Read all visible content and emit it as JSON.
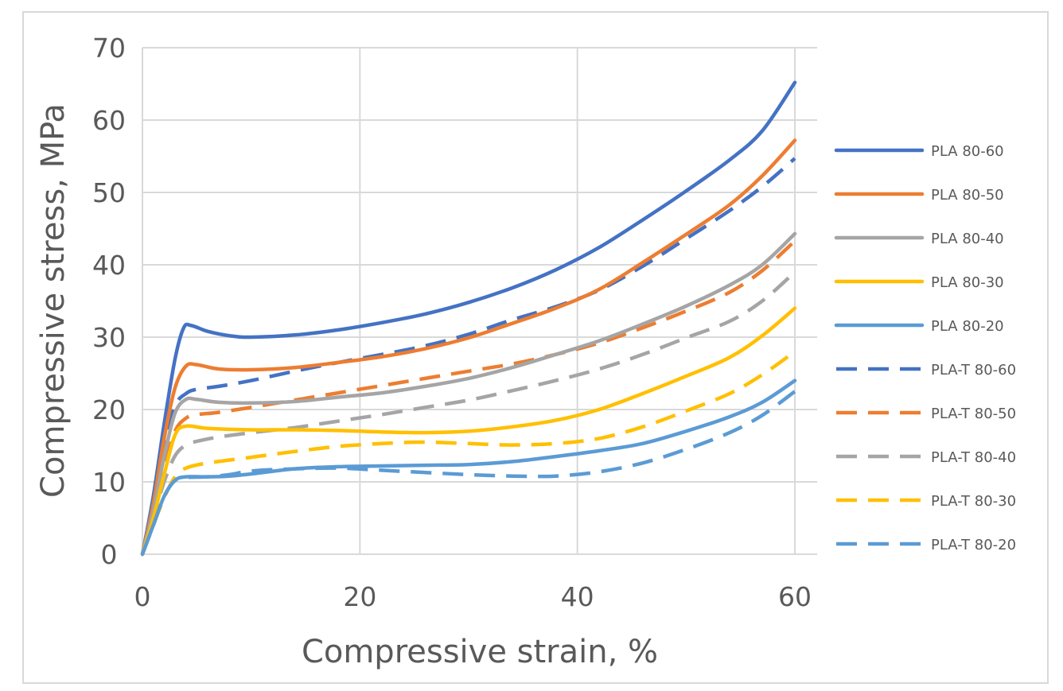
{
  "chart_data": {
    "type": "line",
    "title": "",
    "xlabel": "Compressive strain, %",
    "ylabel": "Compressive stress, MPa",
    "xlim": [
      0,
      60
    ],
    "ylim": [
      0,
      70
    ],
    "x_ticks": [
      0,
      20,
      40,
      60
    ],
    "y_ticks": [
      0,
      10,
      20,
      30,
      40,
      50,
      60,
      70
    ],
    "grid": true,
    "legend_position": "right",
    "series": [
      {
        "name": "PLA 80-60",
        "color": "#4472c4",
        "dash": "solid",
        "points": [
          [
            0,
            0
          ],
          [
            1,
            8
          ],
          [
            2,
            18
          ],
          [
            3,
            27
          ],
          [
            3.8,
            31.3
          ],
          [
            4.5,
            31.6
          ],
          [
            6,
            30.8
          ],
          [
            8,
            30.2
          ],
          [
            10,
            30
          ],
          [
            14,
            30.3
          ],
          [
            18,
            31
          ],
          [
            22,
            32
          ],
          [
            26,
            33.2
          ],
          [
            30,
            34.8
          ],
          [
            34,
            36.8
          ],
          [
            38,
            39.3
          ],
          [
            42,
            42.4
          ],
          [
            46,
            46.2
          ],
          [
            50,
            50.2
          ],
          [
            54,
            54.5
          ],
          [
            57,
            58.5
          ],
          [
            60,
            65.2
          ]
        ]
      },
      {
        "name": "PLA 80-50",
        "color": "#ed7d31",
        "dash": "solid",
        "points": [
          [
            0,
            0
          ],
          [
            1,
            7
          ],
          [
            2,
            16
          ],
          [
            3,
            23
          ],
          [
            4,
            26
          ],
          [
            5,
            26.2
          ],
          [
            7,
            25.6
          ],
          [
            10,
            25.5
          ],
          [
            14,
            25.8
          ],
          [
            18,
            26.5
          ],
          [
            22,
            27.3
          ],
          [
            26,
            28.4
          ],
          [
            30,
            29.9
          ],
          [
            34,
            31.9
          ],
          [
            38,
            34
          ],
          [
            42,
            36.6
          ],
          [
            46,
            40.3
          ],
          [
            50,
            44.2
          ],
          [
            54,
            48.3
          ],
          [
            57,
            52.3
          ],
          [
            60,
            57.2
          ]
        ]
      },
      {
        "name": "PLA 80-40",
        "color": "#a5a5a5",
        "dash": "solid",
        "points": [
          [
            0,
            0
          ],
          [
            1,
            6
          ],
          [
            2,
            13.5
          ],
          [
            3,
            19.5
          ],
          [
            4,
            21.4
          ],
          [
            5,
            21.4
          ],
          [
            7,
            21
          ],
          [
            10,
            20.9
          ],
          [
            14,
            21.1
          ],
          [
            18,
            21.7
          ],
          [
            22,
            22.3
          ],
          [
            26,
            23.2
          ],
          [
            30,
            24.3
          ],
          [
            34,
            25.8
          ],
          [
            38,
            27.6
          ],
          [
            42,
            29.5
          ],
          [
            46,
            31.8
          ],
          [
            50,
            34.3
          ],
          [
            54,
            37.2
          ],
          [
            57,
            40
          ],
          [
            60,
            44.3
          ]
        ]
      },
      {
        "name": "PLA 80-30",
        "color": "#ffc000",
        "dash": "solid",
        "points": [
          [
            0,
            0
          ],
          [
            1,
            5
          ],
          [
            2,
            11
          ],
          [
            3,
            16.5
          ],
          [
            4,
            17.7
          ],
          [
            6,
            17.4
          ],
          [
            10,
            17.2
          ],
          [
            14,
            17.2
          ],
          [
            18,
            17.1
          ],
          [
            22,
            16.9
          ],
          [
            26,
            16.8
          ],
          [
            30,
            17
          ],
          [
            34,
            17.6
          ],
          [
            38,
            18.5
          ],
          [
            42,
            20
          ],
          [
            46,
            22.2
          ],
          [
            50,
            24.6
          ],
          [
            54,
            27.2
          ],
          [
            57,
            30.2
          ],
          [
            60,
            34
          ]
        ]
      },
      {
        "name": "PLA 80-20",
        "color": "#5b9bd5",
        "dash": "solid",
        "points": [
          [
            0,
            0
          ],
          [
            1,
            4
          ],
          [
            2,
            8
          ],
          [
            3,
            10.2
          ],
          [
            4,
            10.7
          ],
          [
            6,
            10.7
          ],
          [
            8,
            10.8
          ],
          [
            10,
            11.1
          ],
          [
            14,
            11.8
          ],
          [
            18,
            12.1
          ],
          [
            22,
            12.2
          ],
          [
            26,
            12.3
          ],
          [
            30,
            12.4
          ],
          [
            34,
            12.8
          ],
          [
            38,
            13.5
          ],
          [
            42,
            14.3
          ],
          [
            46,
            15.3
          ],
          [
            50,
            17
          ],
          [
            54,
            19
          ],
          [
            57,
            21
          ],
          [
            60,
            24
          ]
        ]
      },
      {
        "name": "PLA-T 80-60",
        "color": "#4472c4",
        "dash": "dashed",
        "points": [
          [
            0,
            0
          ],
          [
            1,
            7
          ],
          [
            2,
            15
          ],
          [
            3,
            20.5
          ],
          [
            4,
            22.2
          ],
          [
            5,
            22.8
          ],
          [
            7,
            23.2
          ],
          [
            10,
            24
          ],
          [
            14,
            25.3
          ],
          [
            18,
            26.5
          ],
          [
            22,
            27.6
          ],
          [
            26,
            28.8
          ],
          [
            30,
            30.4
          ],
          [
            34,
            32.4
          ],
          [
            38,
            34.2
          ],
          [
            42,
            36.5
          ],
          [
            46,
            39.8
          ],
          [
            50,
            43.6
          ],
          [
            54,
            47.5
          ],
          [
            57,
            50.8
          ],
          [
            60,
            54.7
          ]
        ]
      },
      {
        "name": "PLA-T 80-50",
        "color": "#ed7d31",
        "dash": "dashed",
        "points": [
          [
            0,
            0
          ],
          [
            1,
            6
          ],
          [
            2,
            12
          ],
          [
            3,
            17
          ],
          [
            4,
            18.8
          ],
          [
            5,
            19.3
          ],
          [
            7,
            19.6
          ],
          [
            10,
            20.3
          ],
          [
            14,
            21.3
          ],
          [
            18,
            22.3
          ],
          [
            22,
            23.3
          ],
          [
            26,
            24.3
          ],
          [
            30,
            25.3
          ],
          [
            34,
            26.3
          ],
          [
            38,
            27.6
          ],
          [
            42,
            29.2
          ],
          [
            46,
            31.3
          ],
          [
            50,
            33.6
          ],
          [
            54,
            36.2
          ],
          [
            57,
            39.2
          ],
          [
            60,
            43.3
          ]
        ]
      },
      {
        "name": "PLA-T 80-40",
        "color": "#a5a5a5",
        "dash": "dashed",
        "points": [
          [
            0,
            0
          ],
          [
            1,
            5
          ],
          [
            2,
            10
          ],
          [
            3,
            13.6
          ],
          [
            4,
            15.1
          ],
          [
            5,
            15.6
          ],
          [
            7,
            16.2
          ],
          [
            10,
            16.8
          ],
          [
            14,
            17.5
          ],
          [
            18,
            18.4
          ],
          [
            22,
            19.3
          ],
          [
            26,
            20.3
          ],
          [
            30,
            21.3
          ],
          [
            34,
            22.6
          ],
          [
            38,
            24
          ],
          [
            42,
            25.6
          ],
          [
            46,
            27.6
          ],
          [
            50,
            29.9
          ],
          [
            54,
            32.2
          ],
          [
            57,
            35
          ],
          [
            60,
            39
          ]
        ]
      },
      {
        "name": "PLA-T 80-30",
        "color": "#ffc000",
        "dash": "dashed",
        "points": [
          [
            0,
            0
          ],
          [
            1,
            4
          ],
          [
            2,
            7.8
          ],
          [
            3,
            10.7
          ],
          [
            4,
            11.9
          ],
          [
            6,
            12.6
          ],
          [
            10,
            13.4
          ],
          [
            14,
            14.2
          ],
          [
            18,
            14.9
          ],
          [
            22,
            15.3
          ],
          [
            26,
            15.5
          ],
          [
            30,
            15.3
          ],
          [
            34,
            15.1
          ],
          [
            38,
            15.3
          ],
          [
            42,
            16
          ],
          [
            46,
            17.6
          ],
          [
            50,
            19.8
          ],
          [
            54,
            22.2
          ],
          [
            57,
            24.8
          ],
          [
            60,
            28
          ]
        ]
      },
      {
        "name": "PLA-T 80-20",
        "color": "#5b9bd5",
        "dash": "dashed",
        "points": [
          [
            0,
            0
          ],
          [
            1,
            4
          ],
          [
            2,
            8
          ],
          [
            3,
            10.2
          ],
          [
            4,
            10.6
          ],
          [
            6,
            10.7
          ],
          [
            8,
            11
          ],
          [
            10,
            11.5
          ],
          [
            14,
            11.8
          ],
          [
            18,
            11.9
          ],
          [
            22,
            11.6
          ],
          [
            26,
            11.3
          ],
          [
            30,
            11
          ],
          [
            34,
            10.8
          ],
          [
            38,
            10.8
          ],
          [
            42,
            11.4
          ],
          [
            46,
            12.6
          ],
          [
            50,
            14.5
          ],
          [
            54,
            16.8
          ],
          [
            57,
            19.2
          ],
          [
            60,
            22.5
          ]
        ]
      }
    ]
  }
}
